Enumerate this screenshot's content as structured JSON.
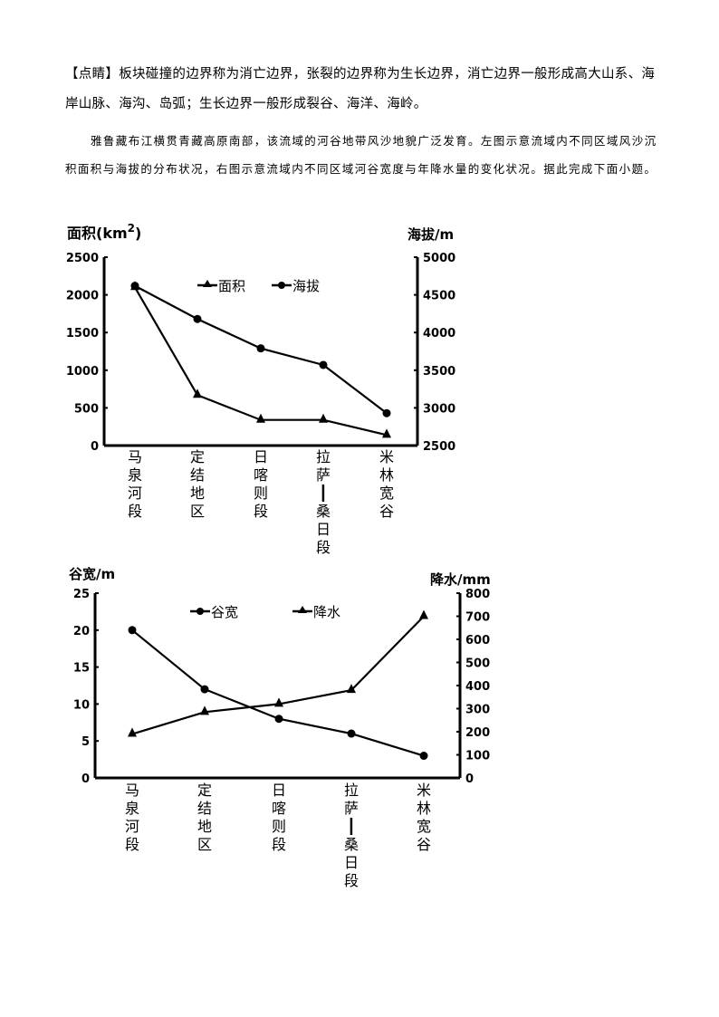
{
  "text": {
    "tip_heading": "【点睛】",
    "tip_body": "板块碰撞的边界称为消亡边界，张裂的边界称为生长边界，消亡边界一般形成高大山系、海岸山脉、海沟、岛弧；生长边界一般形成裂谷、海洋、海岭。",
    "question_intro": "雅鲁藏布江横贯青藏高原南部，该流域的河谷地带风沙地貌广泛发育。左图示意流域内不同区域风沙沉积面积与海拔的分布状况，右图示意流域内不同区域河谷宽度与年降水量的变化状况。据此完成下面小题。"
  },
  "chart_data": [
    {
      "type": "line",
      "title": "",
      "categories": [
        "马泉河段",
        "定结地区",
        "日喀则段",
        "拉萨—桑日段",
        "米林宽谷"
      ],
      "category_lines": [
        [
          "马",
          "泉",
          "河",
          "段"
        ],
        [
          "定",
          "结",
          "地",
          "区"
        ],
        [
          "日",
          "喀",
          "则",
          "段"
        ],
        [
          "拉",
          "萨",
          "┃",
          "桑",
          "日",
          "段"
        ],
        [
          "米",
          "林",
          "宽",
          "谷"
        ]
      ],
      "ylabel": "面积(km²)",
      "ylabel_left_base": "面积(km",
      "ylabel_left_sup": "2",
      "ylabel_left_end": ")",
      "ylabel_right": "海拔/m",
      "ylim": [
        0,
        2500
      ],
      "yticks": [
        "0",
        "500",
        "1000",
        "1500",
        "2000",
        "2500"
      ],
      "ylim_right": [
        2500,
        5000
      ],
      "yticks_right": [
        "2500",
        "3000",
        "3500",
        "4000",
        "4500",
        "5000"
      ],
      "grid": false,
      "legend_position": "top-center",
      "series": [
        {
          "name": "面积",
          "marker": "triangle",
          "axis": "left",
          "values": [
            2100,
            670,
            340,
            340,
            140
          ]
        },
        {
          "name": "海拔",
          "marker": "circle",
          "axis": "right",
          "values": [
            4620,
            4180,
            3790,
            3570,
            2930
          ]
        }
      ]
    },
    {
      "type": "line",
      "title": "",
      "categories": [
        "马泉河段",
        "定结地区",
        "日喀则段",
        "拉萨—桑日段",
        "米林宽谷"
      ],
      "category_lines": [
        [
          "马",
          "泉",
          "河",
          "段"
        ],
        [
          "定",
          "结",
          "地",
          "区"
        ],
        [
          "日",
          "喀",
          "则",
          "段"
        ],
        [
          "拉",
          "萨",
          "┃",
          "桑",
          "日",
          "段"
        ],
        [
          "米",
          "林",
          "宽",
          "谷"
        ]
      ],
      "ylabel": "谷宽/m",
      "ylabel_right": "降水/mm",
      "ylim": [
        0,
        25
      ],
      "yticks": [
        "0",
        "5",
        "10",
        "15",
        "20",
        "25"
      ],
      "ylim_right": [
        0,
        800
      ],
      "yticks_right": [
        "0",
        "100",
        "200",
        "300",
        "400",
        "500",
        "600",
        "700",
        "800"
      ],
      "grid": false,
      "legend_position": "top-center",
      "series": [
        {
          "name": "谷宽",
          "marker": "circle",
          "axis": "left",
          "values": [
            20,
            12,
            8,
            6,
            3
          ]
        },
        {
          "name": "降水",
          "marker": "triangle",
          "axis": "right",
          "values": [
            190,
            285,
            320,
            380,
            700
          ]
        }
      ]
    }
  ]
}
